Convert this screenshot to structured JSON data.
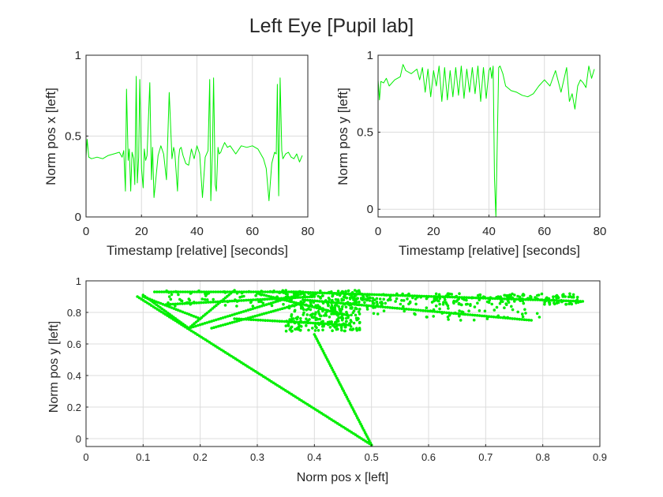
{
  "figure_title": "Left Eye [Pupil lab]",
  "colors": {
    "series": "#00ee00",
    "grid": "#dcdcdc",
    "axis": "#262626"
  },
  "chart_data": [
    {
      "type": "line",
      "xlabel": "Timestamp [relative] [seconds]",
      "ylabel": "Norm pos x [left]",
      "xlim": [
        0,
        80
      ],
      "ylim": [
        0,
        1
      ],
      "xticks": [
        0,
        20,
        40,
        60,
        80
      ],
      "yticks": [
        0,
        0.5,
        1
      ],
      "xticklabels": [
        "0",
        "20",
        "40",
        "60",
        "80"
      ],
      "yticklabels": [
        "0",
        "0.5",
        "1"
      ],
      "grid": true,
      "series": [
        {
          "x": [
            0,
            0.4,
            1,
            2,
            4,
            6,
            8,
            10,
            12,
            13,
            13.6,
            14.2,
            14.6,
            15.2,
            15.6,
            16.1,
            16.6,
            17.2,
            17.6,
            18.1,
            18.5,
            19,
            19.4,
            20,
            20.6,
            21,
            21.5,
            22,
            23,
            23.6,
            24,
            24.5,
            25,
            26,
            27,
            28,
            29,
            30,
            31,
            31.6,
            32,
            33,
            33.4,
            33.8,
            34.3,
            35,
            36,
            37,
            38,
            39,
            40,
            41,
            42,
            43,
            44,
            44.6,
            45,
            45.6,
            46,
            46.6,
            47,
            47.6,
            48,
            48.6,
            49,
            50,
            51,
            52,
            54,
            56,
            58,
            60,
            62,
            64,
            65,
            66,
            67,
            68,
            68.6,
            69,
            69.5,
            70,
            70.6,
            71,
            72,
            73,
            74,
            75,
            76,
            77,
            78
          ],
          "y": [
            0.37,
            0.48,
            0.37,
            0.36,
            0.37,
            0.36,
            0.38,
            0.39,
            0.4,
            0.37,
            0.41,
            0.16,
            0.79,
            0.35,
            0.42,
            0.16,
            0.4,
            0.36,
            0.2,
            0.87,
            0.21,
            0.37,
            0.85,
            0.3,
            0.18,
            0.42,
            0.35,
            0.38,
            0.83,
            0.23,
            0.43,
            0.12,
            0.2,
            0.38,
            0.44,
            0.39,
            0.23,
            0.77,
            0.36,
            0.43,
            0.4,
            0.16,
            0.36,
            0.42,
            0.43,
            0.38,
            0.33,
            0.32,
            0.42,
            0.36,
            0.44,
            0.39,
            0.12,
            0.37,
            0.41,
            0.85,
            0.1,
            0.41,
            0.86,
            0.2,
            0.16,
            0.43,
            0.39,
            0.4,
            0.42,
            0.46,
            0.43,
            0.44,
            0.39,
            0.44,
            0.43,
            0.44,
            0.42,
            0.36,
            0.3,
            0.1,
            0.33,
            0.4,
            0.39,
            0.82,
            0.13,
            0.86,
            0.41,
            0.36,
            0.39,
            0.4,
            0.37,
            0.36,
            0.39,
            0.34,
            0.38
          ]
        }
      ]
    },
    {
      "type": "line",
      "xlabel": "Timestamp [relative] [seconds]",
      "ylabel": "Norm pos y [left]",
      "xlim": [
        0,
        80
      ],
      "ylim": [
        -0.05,
        1
      ],
      "xticks": [
        0,
        20,
        40,
        60,
        80
      ],
      "yticks": [
        0,
        0.5,
        1
      ],
      "xticklabels": [
        "0",
        "20",
        "40",
        "60",
        "80"
      ],
      "yticklabels": [
        "0",
        "0.5",
        "1"
      ],
      "grid": true,
      "series": [
        {
          "x": [
            0,
            0.5,
            1,
            2,
            3,
            4,
            6,
            8,
            9,
            10,
            12,
            14,
            15,
            16,
            17,
            18,
            19,
            20,
            21,
            22,
            23,
            24,
            25,
            26,
            27,
            28,
            29,
            30,
            31,
            32,
            33,
            34,
            35,
            36,
            37,
            38,
            39,
            40,
            40.5,
            41,
            41.5,
            42,
            42.5,
            43,
            43.5,
            44,
            45,
            46,
            48,
            50,
            52,
            54,
            56,
            58,
            60,
            62,
            64,
            66,
            68,
            69,
            70,
            71,
            72,
            73,
            74,
            75,
            76,
            77,
            78
          ],
          "y": [
            0.84,
            0.71,
            0.83,
            0.82,
            0.85,
            0.8,
            0.84,
            0.86,
            0.94,
            0.9,
            0.88,
            0.91,
            0.84,
            0.92,
            0.76,
            0.91,
            0.73,
            0.9,
            0.8,
            0.93,
            0.7,
            0.92,
            0.71,
            0.9,
            0.73,
            0.92,
            0.74,
            0.93,
            0.72,
            0.91,
            0.76,
            0.92,
            0.75,
            0.93,
            0.7,
            0.92,
            0.72,
            0.9,
            0.92,
            0.85,
            0.93,
            0.2,
            -0.05,
            0.43,
            0.92,
            0.93,
            0.88,
            0.8,
            0.77,
            0.76,
            0.74,
            0.73,
            0.75,
            0.8,
            0.84,
            0.8,
            0.9,
            0.76,
            0.92,
            0.7,
            0.75,
            0.65,
            0.8,
            0.84,
            0.82,
            0.79,
            0.93,
            0.85,
            0.91
          ]
        }
      ]
    },
    {
      "type": "scatter",
      "xlabel": "Norm pos x [left]",
      "ylabel": "Norm pos y [left]",
      "xlim": [
        0,
        0.9
      ],
      "ylim": [
        -0.05,
        1
      ],
      "xticks": [
        0,
        0.1,
        0.2,
        0.3,
        0.4,
        0.5,
        0.6,
        0.7,
        0.8,
        0.9
      ],
      "yticks": [
        0,
        0.2,
        0.4,
        0.6,
        0.8,
        1
      ],
      "xticklabels": [
        "0",
        "0.1",
        "0.2",
        "0.3",
        "0.4",
        "0.5",
        "0.6",
        "0.7",
        "0.8",
        "0.9"
      ],
      "yticklabels": [
        "0",
        "0.2",
        "0.4",
        "0.6",
        "0.8",
        "1"
      ],
      "grid": true,
      "segments": [
        [
          0.09,
          0.9,
          0.5,
          -0.04
        ],
        [
          0.1,
          0.91,
          0.18,
          0.7
        ],
        [
          0.12,
          0.93,
          0.38,
          0.93
        ],
        [
          0.18,
          0.7,
          0.38,
          0.92
        ],
        [
          0.22,
          0.7,
          0.38,
          0.86
        ],
        [
          0.14,
          0.85,
          0.4,
          0.9
        ],
        [
          0.18,
          0.7,
          0.26,
          0.94
        ],
        [
          0.4,
          0.66,
          0.5,
          -0.04
        ],
        [
          0.36,
          0.93,
          0.87,
          0.87
        ],
        [
          0.38,
          0.88,
          0.78,
          0.75
        ],
        [
          0.1,
          0.9,
          0.2,
          0.76
        ],
        [
          0.26,
          0.76,
          0.46,
          0.72
        ],
        [
          0.3,
          0.92,
          0.46,
          0.78
        ]
      ],
      "cloud": [
        {
          "x0": 0.35,
          "x1": 0.48,
          "y0": 0.68,
          "y1": 0.94,
          "n": 340
        },
        {
          "x0": 0.47,
          "x1": 0.87,
          "y0": 0.85,
          "y1": 0.92,
          "n": 230
        },
        {
          "x0": 0.47,
          "x1": 0.8,
          "y0": 0.75,
          "y1": 0.85,
          "n": 60
        },
        {
          "x0": 0.14,
          "x1": 0.35,
          "y0": 0.84,
          "y1": 0.94,
          "n": 70
        }
      ]
    }
  ]
}
